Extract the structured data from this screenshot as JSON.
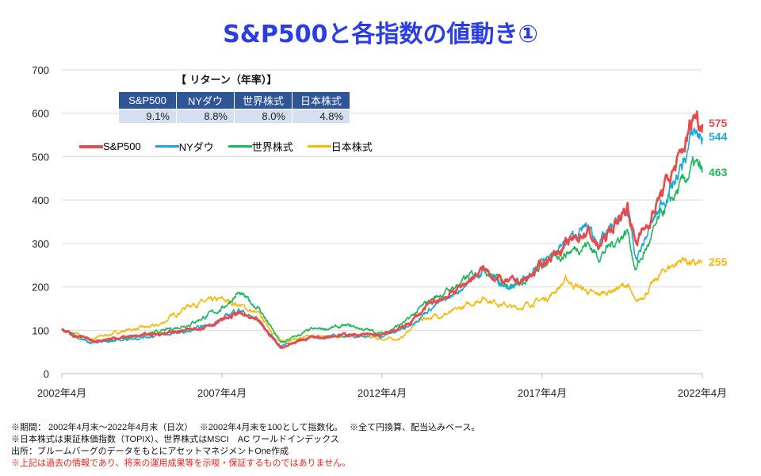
{
  "title": "S&P500と各指数の値動き①",
  "returns": {
    "title": "【 リターン（年率）】",
    "headers": [
      "S&P500",
      "NYダウ",
      "世界株式",
      "日本株式"
    ],
    "values": [
      "9.1%",
      "8.8%",
      "8.0%",
      "4.8%"
    ]
  },
  "chart_data": {
    "type": "line",
    "ylim": [
      0,
      700
    ],
    "yticks": [
      "0",
      "100",
      "200",
      "300",
      "400",
      "500",
      "600",
      "700"
    ],
    "xlim": [
      "2002-04",
      "2022-04"
    ],
    "xticks": [
      "2002年4月",
      "2007年4月",
      "2012年4月",
      "2017年4月",
      "2022年4月"
    ],
    "grid": true,
    "legend": "top-left",
    "series": [
      {
        "name": "S&P500",
        "color": "#ea4a4a",
        "end_label": "575",
        "points": [
          [
            "2002-04",
            100
          ],
          [
            "2003-03",
            75
          ],
          [
            "2004-04",
            85
          ],
          [
            "2005-04",
            92
          ],
          [
            "2006-04",
            100
          ],
          [
            "2007-04",
            122
          ],
          [
            "2007-10",
            140
          ],
          [
            "2008-06",
            118
          ],
          [
            "2009-02",
            60
          ],
          [
            "2010-01",
            85
          ],
          [
            "2011-04",
            90
          ],
          [
            "2012-04",
            88
          ],
          [
            "2013-01",
            110
          ],
          [
            "2013-10",
            160
          ],
          [
            "2014-06",
            185
          ],
          [
            "2015-06",
            240
          ],
          [
            "2016-02",
            210
          ],
          [
            "2016-10",
            215
          ],
          [
            "2017-06",
            265
          ],
          [
            "2018-09",
            330
          ],
          [
            "2019-01",
            290
          ],
          [
            "2019-12",
            385
          ],
          [
            "2020-03",
            305
          ],
          [
            "2020-08",
            350
          ],
          [
            "2021-01",
            420
          ],
          [
            "2021-08",
            500
          ],
          [
            "2022-01",
            600
          ],
          [
            "2022-04",
            575
          ]
        ]
      },
      {
        "name": "NYダウ",
        "color": "#1ba8d8",
        "end_label": "544",
        "points": [
          [
            "2002-04",
            100
          ],
          [
            "2003-03",
            72
          ],
          [
            "2004-04",
            80
          ],
          [
            "2005-04",
            88
          ],
          [
            "2006-04",
            97
          ],
          [
            "2007-04",
            125
          ],
          [
            "2007-10",
            150
          ],
          [
            "2008-06",
            118
          ],
          [
            "2009-02",
            65
          ],
          [
            "2010-01",
            82
          ],
          [
            "2011-04",
            88
          ],
          [
            "2012-04",
            86
          ],
          [
            "2013-01",
            105
          ],
          [
            "2013-10",
            150
          ],
          [
            "2014-06",
            178
          ],
          [
            "2015-06",
            240
          ],
          [
            "2016-02",
            205
          ],
          [
            "2016-10",
            215
          ],
          [
            "2017-06",
            268
          ],
          [
            "2018-09",
            340
          ],
          [
            "2019-01",
            300
          ],
          [
            "2019-12",
            375
          ],
          [
            "2020-03",
            260
          ],
          [
            "2020-08",
            330
          ],
          [
            "2021-01",
            395
          ],
          [
            "2021-08",
            470
          ],
          [
            "2022-01",
            560
          ],
          [
            "2022-04",
            544
          ]
        ]
      },
      {
        "name": "世界株式",
        "color": "#1bb85a",
        "end_label": "463",
        "points": [
          [
            "2002-04",
            100
          ],
          [
            "2003-03",
            70
          ],
          [
            "2004-04",
            82
          ],
          [
            "2005-04",
            95
          ],
          [
            "2006-04",
            115
          ],
          [
            "2007-04",
            150
          ],
          [
            "2007-10",
            185
          ],
          [
            "2008-06",
            150
          ],
          [
            "2009-02",
            70
          ],
          [
            "2010-01",
            100
          ],
          [
            "2011-04",
            110
          ],
          [
            "2012-04",
            92
          ],
          [
            "2013-01",
            120
          ],
          [
            "2013-10",
            170
          ],
          [
            "2014-06",
            195
          ],
          [
            "2015-06",
            245
          ],
          [
            "2016-02",
            205
          ],
          [
            "2016-10",
            210
          ],
          [
            "2017-06",
            260
          ],
          [
            "2018-09",
            300
          ],
          [
            "2019-01",
            270
          ],
          [
            "2019-12",
            330
          ],
          [
            "2020-03",
            240
          ],
          [
            "2020-08",
            300
          ],
          [
            "2021-01",
            370
          ],
          [
            "2021-08",
            430
          ],
          [
            "2022-01",
            480
          ],
          [
            "2022-04",
            463
          ]
        ]
      },
      {
        "name": "日本株式",
        "color": "#f5b90a",
        "end_label": "255",
        "points": [
          [
            "2002-04",
            100
          ],
          [
            "2003-03",
            80
          ],
          [
            "2004-04",
            100
          ],
          [
            "2005-04",
            110
          ],
          [
            "2006-04",
            160
          ],
          [
            "2007-04",
            170
          ],
          [
            "2007-10",
            160
          ],
          [
            "2008-06",
            135
          ],
          [
            "2009-02",
            75
          ],
          [
            "2010-01",
            85
          ],
          [
            "2011-04",
            88
          ],
          [
            "2012-04",
            80
          ],
          [
            "2012-11",
            80
          ],
          [
            "2013-06",
            125
          ],
          [
            "2014-06",
            140
          ],
          [
            "2015-06",
            175
          ],
          [
            "2016-06",
            150
          ],
          [
            "2017-06",
            175
          ],
          [
            "2018-01",
            215
          ],
          [
            "2018-12",
            180
          ],
          [
            "2019-12",
            205
          ],
          [
            "2020-03",
            160
          ],
          [
            "2020-08",
            195
          ],
          [
            "2021-02",
            240
          ],
          [
            "2021-09",
            265
          ],
          [
            "2022-01",
            250
          ],
          [
            "2022-04",
            255
          ]
        ]
      }
    ]
  },
  "notes": [
    "※期間： 2002年4月末～2022年4月末（日次）　 ※2002年4月末を100として指数化。　 ※全て円換算、配当込みベース。",
    "※日本株式は東証株価指数（TOPIX）、世界株式はMSCI　AC ワールドインデックス",
    "出所：ブルームバーグのデータをもとにアセットマネジメントOne作成"
  ],
  "disclaimer": "※上記は過去の情報であり、将来の運用成果等を示唆・保証するものではありません。"
}
